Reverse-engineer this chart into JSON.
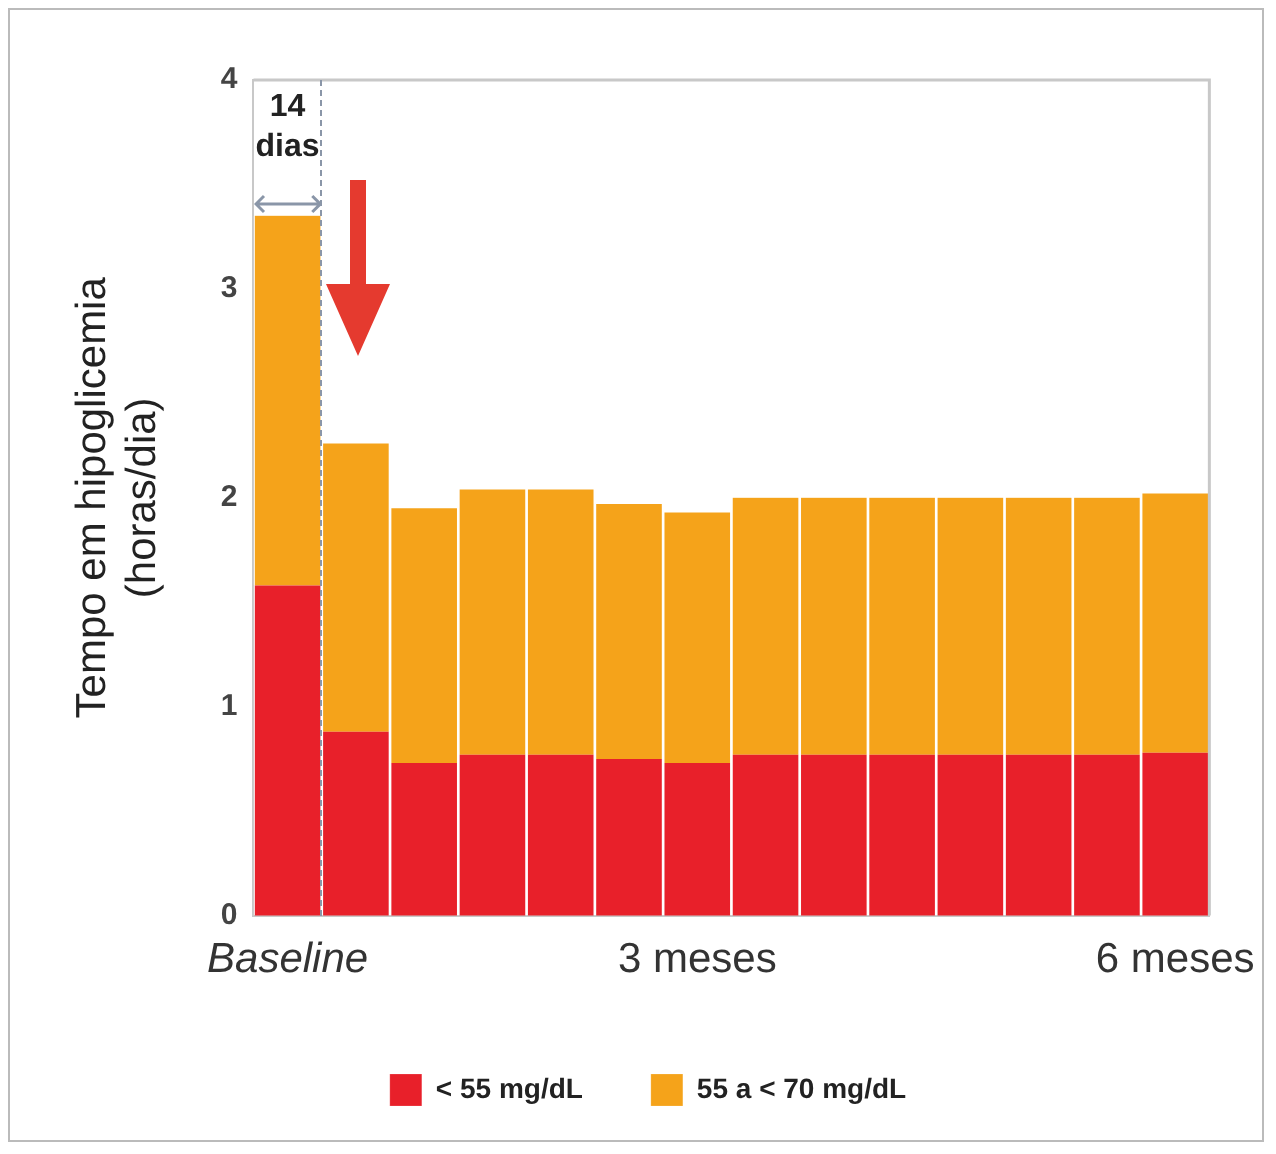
{
  "chart_data": {
    "type": "bar",
    "stacked": true,
    "ylabel": "Tempo em hipoglicemia\n(horas/dia)",
    "categories": [
      "Baseline",
      null,
      null,
      null,
      null,
      null,
      "3 meses",
      null,
      null,
      null,
      null,
      null,
      null,
      "6 meses"
    ],
    "series": [
      {
        "name": "< 55 mg/dL",
        "color": "#e8202a",
        "values": [
          1.58,
          0.88,
          0.73,
          0.77,
          0.77,
          0.75,
          0.73,
          0.77,
          0.77,
          0.77,
          0.77,
          0.77,
          0.77,
          0.78
        ]
      },
      {
        "name": "55 a < 70 mg/dL",
        "color": "#f5a31a",
        "values": [
          1.77,
          1.38,
          1.22,
          1.27,
          1.27,
          1.22,
          1.2,
          1.23,
          1.23,
          1.23,
          1.23,
          1.23,
          1.23,
          1.24
        ]
      }
    ],
    "ylim": [
      0,
      4
    ],
    "yticks": [
      0,
      1,
      2,
      3,
      4
    ],
    "grid": false,
    "legend": "bottom",
    "annotations": [
      "14 dias"
    ]
  }
}
